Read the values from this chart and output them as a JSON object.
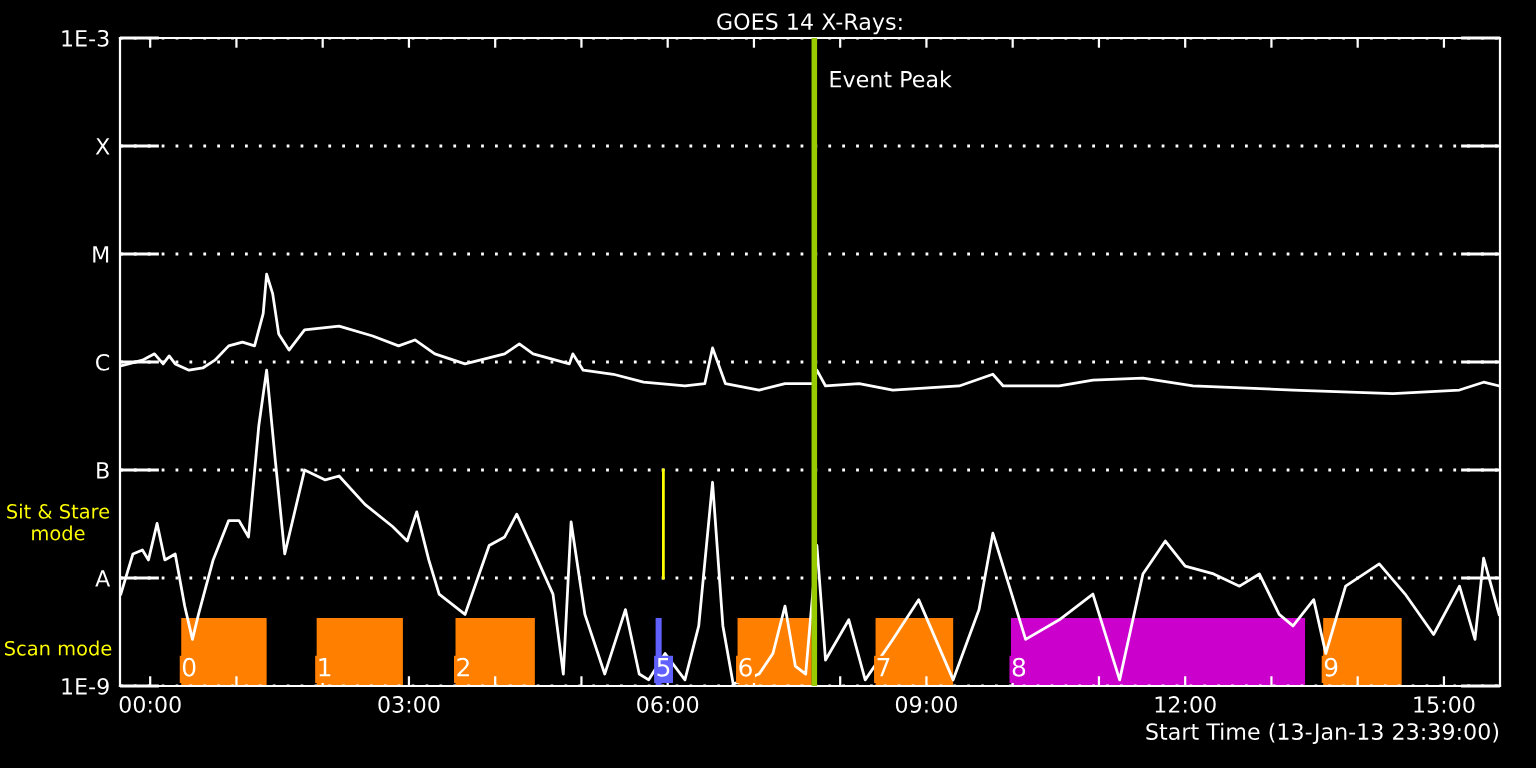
{
  "chart_data": {
    "type": "line",
    "title": "GOES 14 X-Rays:",
    "xlabel": "Start Time (13-Jan-13 23:39:00)",
    "annotations": [
      "Sit & Stare\nmode",
      "Scan mode"
    ],
    "log": true,
    "grid": "y",
    "xlim": [
      -0.35,
      15.65
    ],
    "ylim": [
      1e-09,
      0.001
    ],
    "yticks": [
      {
        "value": 1e-09,
        "label": "1E-9"
      },
      {
        "value": 1e-08,
        "label": "A"
      },
      {
        "value": 1e-07,
        "label": "B"
      },
      {
        "value": 1e-06,
        "label": "C"
      },
      {
        "value": 1e-05,
        "label": "M"
      },
      {
        "value": 0.0001,
        "label": "X"
      },
      {
        "value": 0.001,
        "label": "1E-3"
      }
    ],
    "xticks": [
      {
        "value": 0,
        "label": "00:00"
      },
      {
        "value": 1,
        "label": null
      },
      {
        "value": 2,
        "label": null
      },
      {
        "value": 3,
        "label": "03:00"
      },
      {
        "value": 4,
        "label": null
      },
      {
        "value": 5,
        "label": null
      },
      {
        "value": 6,
        "label": "06:00"
      },
      {
        "value": 7,
        "label": null
      },
      {
        "value": 8,
        "label": null
      },
      {
        "value": 9,
        "label": "09:00"
      },
      {
        "value": 10,
        "label": null
      },
      {
        "value": 11,
        "label": null
      },
      {
        "value": 12,
        "label": "12:00"
      },
      {
        "value": 13,
        "label": null
      },
      {
        "value": 14,
        "label": null
      },
      {
        "value": 15,
        "label": "15:00"
      }
    ],
    "series": [
      {
        "color": "#ffffff",
        "x": [
          -0.34,
          -0.25,
          -0.09,
          0.05,
          0.15,
          0.22,
          0.29,
          0.45,
          0.61,
          0.75,
          0.91,
          1.07,
          1.21,
          1.31,
          1.35,
          1.42,
          1.49,
          1.61,
          1.79,
          2.19,
          2.58,
          2.88,
          3.07,
          3.3,
          3.65,
          4.11,
          4.28,
          4.44,
          4.86,
          4.9,
          5.02,
          5.37,
          5.72,
          6.2,
          6.43,
          6.52,
          6.67,
          7.06,
          7.36,
          7.69,
          7.73,
          7.83,
          8.22,
          8.61,
          9.38,
          9.77,
          9.89,
          10.54,
          10.93,
          11.51,
          12.09,
          13.25,
          14.41,
          15.18,
          15.46,
          15.64
        ],
        "values": [
          9.2e-07,
          9.6e-07,
          1.04e-06,
          1.19e-06,
          9.6e-07,
          1.14e-06,
          9.6e-07,
          8.4e-07,
          8.8e-07,
          1.04e-06,
          1.41e-06,
          1.53e-06,
          1.41e-06,
          2.8e-06,
          6.5e-06,
          4.3e-06,
          1.82e-06,
          1.29e-06,
          1.98e-06,
          2.15e-06,
          1.74e-06,
          1.41e-06,
          1.6e-06,
          1.19e-06,
          9.6e-07,
          1.19e-06,
          1.47e-06,
          1.19e-06,
          9.6e-07,
          1.19e-06,
          8.4e-07,
          7.7e-07,
          6.5e-07,
          6e-07,
          6.3e-07,
          1.35e-06,
          6.3e-07,
          5.5e-07,
          6.3e-07,
          6.3e-07,
          8.4e-07,
          6e-07,
          6.3e-07,
          5.5e-07,
          6e-07,
          7.7e-07,
          6e-07,
          6e-07,
          6.8e-07,
          7.1e-07,
          6e-07,
          5.5e-07,
          5.1e-07,
          5.5e-07,
          6.5e-07,
          6e-07
        ]
      },
      {
        "color": "#ffffff",
        "x": [
          -0.34,
          -0.2,
          -0.09,
          -0.02,
          0.08,
          0.17,
          0.29,
          0.4,
          0.49,
          0.56,
          0.73,
          0.91,
          1.03,
          1.14,
          1.26,
          1.35,
          1.45,
          1.56,
          1.79,
          2.03,
          2.19,
          2.49,
          2.81,
          2.98,
          3.09,
          3.23,
          3.35,
          3.65,
          3.93,
          4.11,
          4.25,
          4.44,
          4.67,
          4.79,
          4.88,
          5.04,
          5.27,
          5.51,
          5.67,
          5.78,
          5.97,
          6.2,
          6.36,
          6.52,
          6.64,
          6.76,
          7.06,
          7.22,
          7.36,
          7.48,
          7.6,
          7.73,
          7.83,
          8.1,
          8.29,
          8.61,
          8.91,
          9.31,
          9.61,
          9.77,
          9.96,
          10.15,
          10.54,
          10.93,
          11.24,
          11.51,
          11.77,
          12.0,
          12.33,
          12.63,
          12.86,
          13.09,
          13.25,
          13.49,
          13.63,
          13.86,
          14.25,
          14.55,
          14.88,
          15.18,
          15.36,
          15.46,
          15.64
        ],
        "values": [
          7.1e-09,
          1.67e-08,
          1.82e-08,
          1.47e-08,
          3.2e-08,
          1.47e-08,
          1.67e-08,
          5.5e-09,
          2.7e-09,
          4.6e-09,
          1.47e-08,
          3.4e-08,
          3.4e-08,
          2.4e-08,
          2.6e-07,
          8.4e-07,
          1.24e-07,
          1.67e-08,
          1e-07,
          8.1e-08,
          8.8e-08,
          4.8e-08,
          3e-08,
          2.2e-08,
          4.1e-08,
          1.47e-08,
          7.1e-09,
          4.6e-09,
          2e-08,
          2.4e-08,
          3.9e-08,
          1.82e-08,
          7.1e-09,
          1.29e-09,
          3.3e-08,
          4.6e-09,
          1.29e-09,
          5.1e-09,
          1.29e-09,
          1.14e-09,
          2e-09,
          1.14e-09,
          3.6e-09,
          7.7e-08,
          3.6e-09,
          1.04e-09,
          1.29e-09,
          2e-09,
          5.5e-09,
          1.53e-09,
          1.29e-09,
          2e-08,
          1.74e-09,
          4.1e-09,
          1.14e-09,
          2.7e-09,
          6.3e-09,
          1.14e-09,
          5.1e-09,
          2.6e-08,
          8.4e-09,
          2.7e-09,
          4.1e-09,
          7.1e-09,
          1.14e-09,
          1.09e-08,
          2.2e-08,
          1.29e-08,
          1.09e-08,
          8.4e-09,
          1.09e-08,
          4.6e-09,
          3.6e-09,
          6.3e-09,
          2e-09,
          8.4e-09,
          1.35e-08,
          7.1e-09,
          3e-09,
          8.4e-09,
          2.7e-09,
          1.53e-08,
          4.6e-09
        ]
      },
      {
        "color": "#ffff00",
        "x": [
          5.95,
          5.95
        ],
        "values": [
          1e-08,
          1e-07
        ]
      }
    ],
    "bands": [
      {
        "axis": "x",
        "from": 0.36,
        "to": 1.35,
        "label": "0",
        "color": "#ff8000"
      },
      {
        "axis": "x",
        "from": 1.93,
        "to": 2.93,
        "label": "1",
        "color": "#ff8000"
      },
      {
        "axis": "x",
        "from": 3.54,
        "to": 4.46,
        "label": "2",
        "color": "#ff8000"
      },
      {
        "axis": "x",
        "from": 5.86,
        "to": 5.93,
        "label": "5",
        "color": "#6060ff"
      },
      {
        "axis": "x",
        "from": 6.81,
        "to": 7.67,
        "label": "6",
        "color": "#ff8000"
      },
      {
        "axis": "x",
        "from": 8.41,
        "to": 9.31,
        "label": "7",
        "color": "#ff8000"
      },
      {
        "axis": "x",
        "from": 9.98,
        "to": 13.39,
        "label": "8",
        "color": "#cc00cc"
      },
      {
        "axis": "x",
        "from": 13.6,
        "to": 14.51,
        "label": "9",
        "color": "#ff8000"
      }
    ],
    "ref_lines": [
      {
        "axis": "x",
        "value": 7.7,
        "label": "Event Peak",
        "color": "#99cc00"
      }
    ]
  }
}
